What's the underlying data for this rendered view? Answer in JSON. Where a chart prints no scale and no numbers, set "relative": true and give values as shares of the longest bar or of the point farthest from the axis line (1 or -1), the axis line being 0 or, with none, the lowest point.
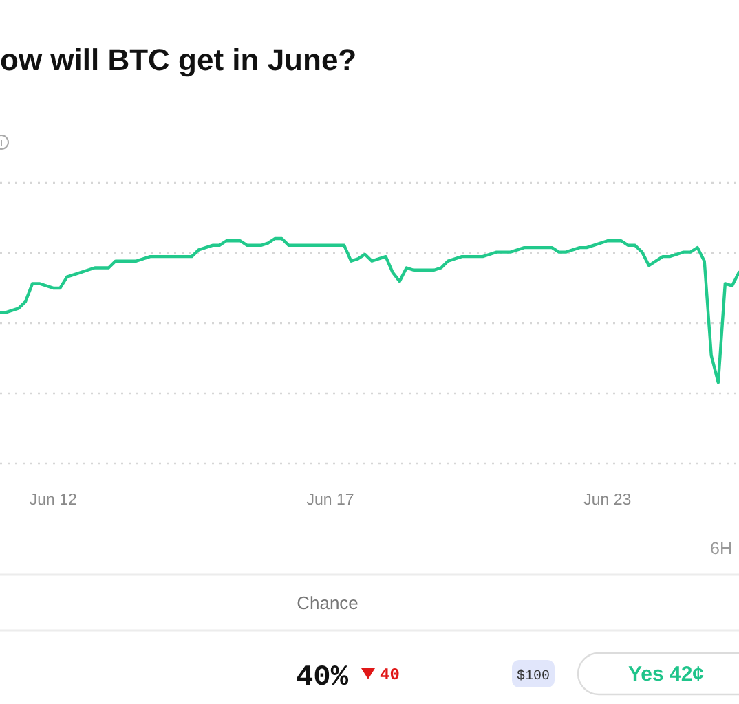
{
  "chart_data": {
    "type": "line",
    "title": "ow will BTC get in June?",
    "relative": true,
    "marker": "none",
    "line_style": "solid",
    "categories": [
      null,
      null,
      null,
      null,
      null,
      null,
      null,
      null,
      "Jun 12",
      null,
      null,
      null,
      null,
      null,
      null,
      null,
      null,
      null,
      null,
      null,
      null,
      null,
      null,
      null,
      null,
      null,
      null,
      null,
      null,
      null,
      null,
      null,
      null,
      null,
      null,
      null,
      null,
      null,
      null,
      null,
      null,
      null,
      null,
      null,
      null,
      null,
      null,
      null,
      "Jun 17",
      null,
      null,
      null,
      null,
      null,
      null,
      null,
      null,
      null,
      null,
      null,
      null,
      null,
      null,
      null,
      null,
      null,
      null,
      null,
      null,
      null,
      null,
      null,
      null,
      null,
      null,
      null,
      null,
      null,
      null,
      null,
      null,
      null,
      null,
      null,
      null,
      null,
      null,
      null,
      "Jun 23",
      null,
      null,
      null,
      null,
      null,
      null,
      null,
      null,
      null,
      null,
      null,
      null,
      null,
      null,
      null,
      null,
      null,
      null,
      null
    ],
    "series": [
      {
        "color": "#22c98c",
        "values": [
          0.67,
          0.67,
          0.68,
          0.69,
          0.72,
          0.8,
          0.8,
          0.79,
          0.78,
          0.78,
          0.83,
          0.84,
          0.85,
          0.86,
          0.87,
          0.87,
          0.87,
          0.9,
          0.9,
          0.9,
          0.9,
          0.91,
          0.92,
          0.92,
          0.92,
          0.92,
          0.92,
          0.92,
          0.92,
          0.95,
          0.96,
          0.97,
          0.97,
          0.99,
          0.99,
          0.99,
          0.97,
          0.97,
          0.97,
          0.98,
          1,
          1,
          0.97,
          0.97,
          0.97,
          0.97,
          0.97,
          0.97,
          0.97,
          0.97,
          0.97,
          0.9,
          0.91,
          0.93,
          0.9,
          0.91,
          0.92,
          0.85,
          0.81,
          0.87,
          0.86,
          0.86,
          0.86,
          0.86,
          0.87,
          0.9,
          0.91,
          0.92,
          0.92,
          0.92,
          0.92,
          0.93,
          0.94,
          0.94,
          0.94,
          0.95,
          0.96,
          0.96,
          0.96,
          0.96,
          0.96,
          0.94,
          0.94,
          0.95,
          0.96,
          0.96,
          0.97,
          0.98,
          0.99,
          0.99,
          0.99,
          0.97,
          0.97,
          0.94,
          0.88,
          0.9,
          0.92,
          0.92,
          0.93,
          0.94,
          0.94,
          0.96,
          0.9,
          0.48,
          0.36,
          0.8,
          0.79,
          0.85
        ]
      }
    ],
    "annotations": [
      "6H",
      "Chance",
      "40%",
      "40",
      "$100",
      "Yes 42¢"
    ]
  }
}
